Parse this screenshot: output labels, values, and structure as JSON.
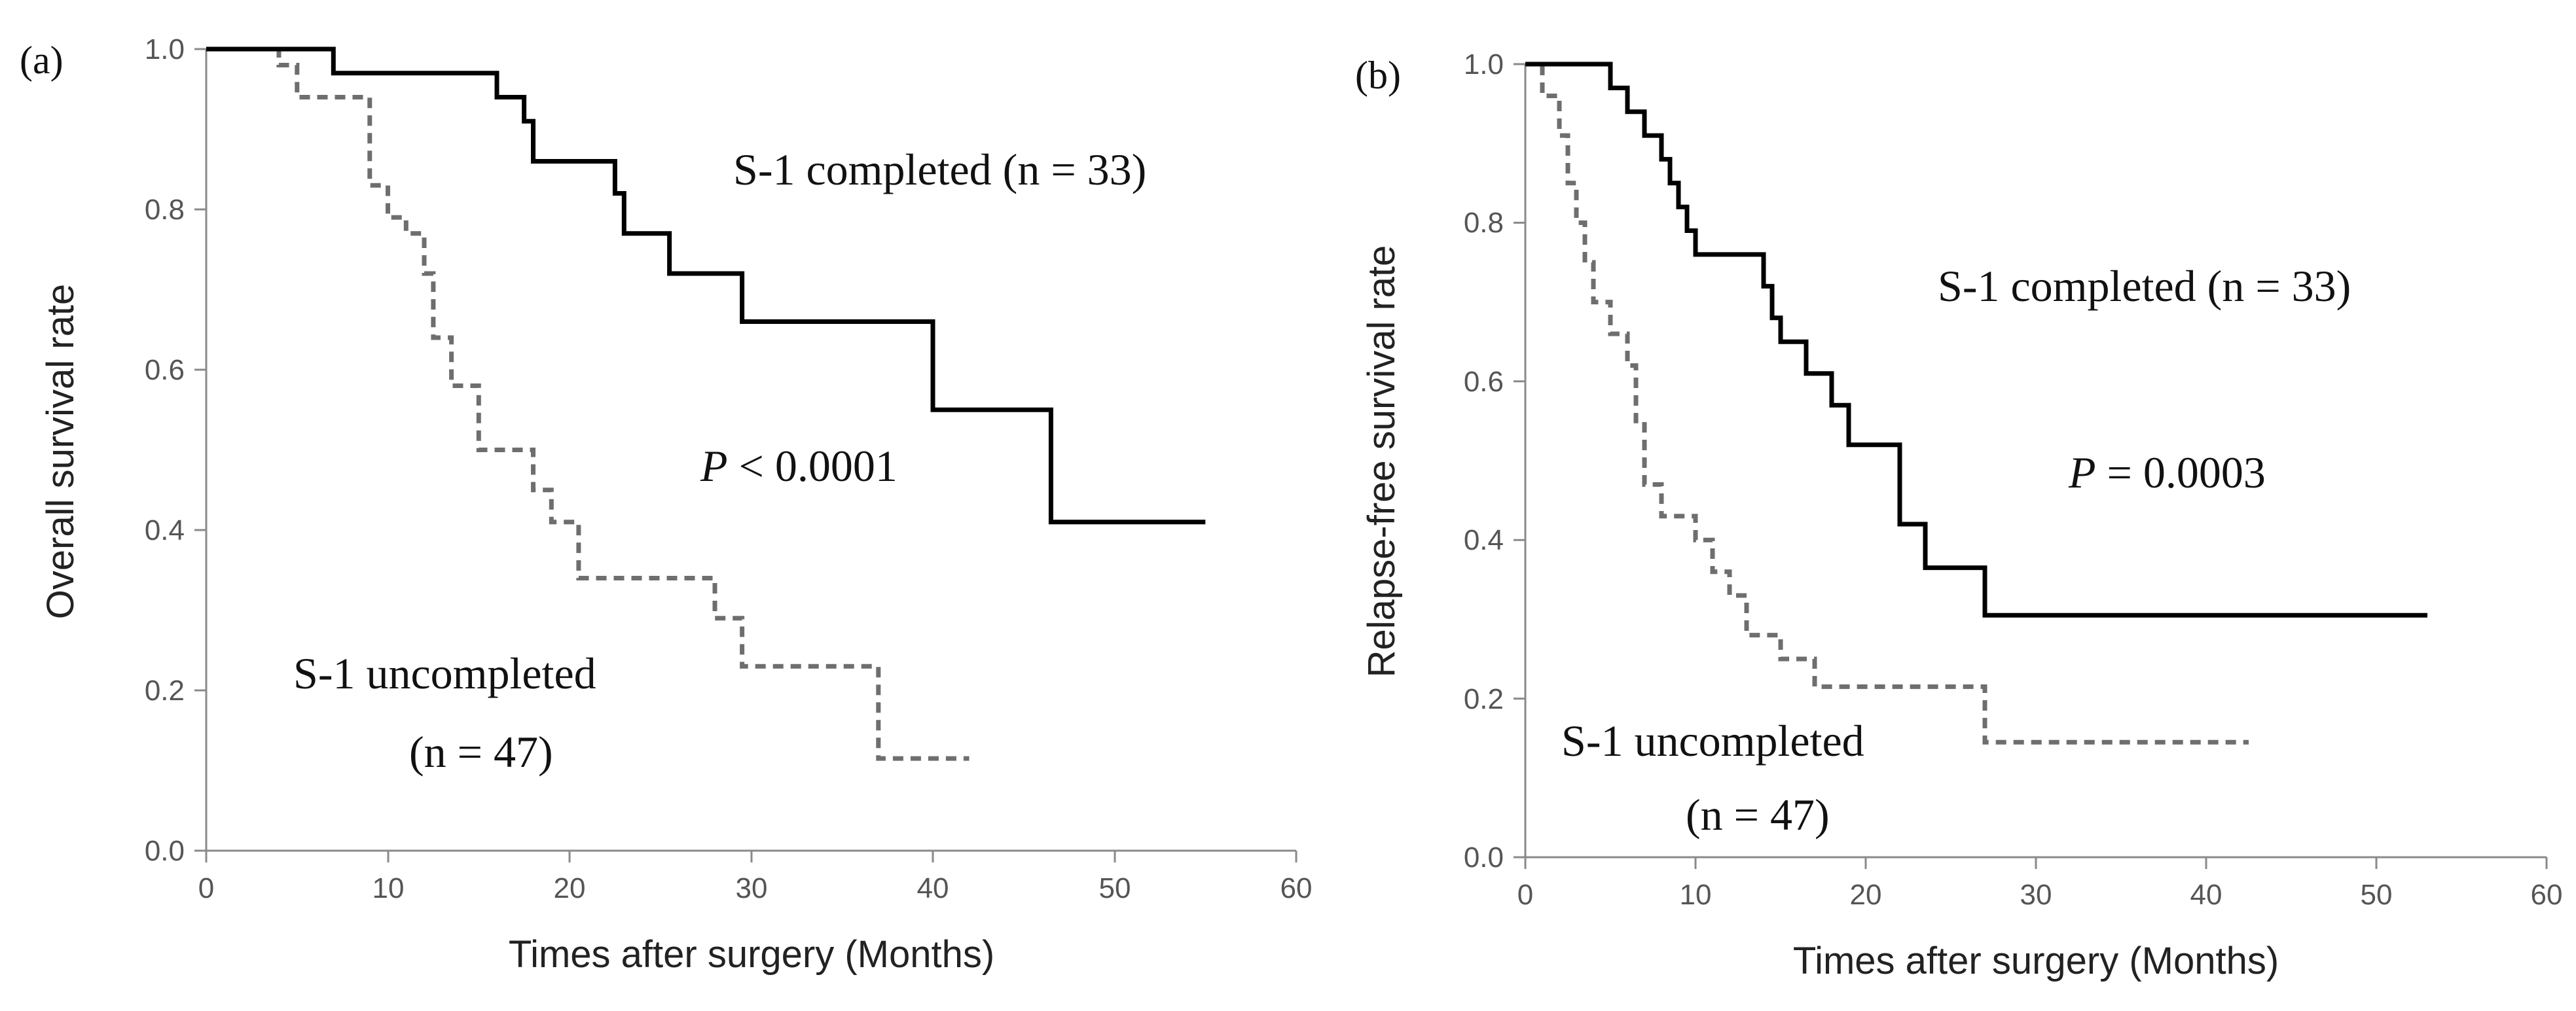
{
  "chart_data": [
    {
      "type": "line",
      "panel_label": "(a)",
      "xlabel": "Times after surgery (Months)",
      "ylabel": "Overall survival rate",
      "xlim": [
        0,
        60
      ],
      "ylim": [
        0,
        1.0
      ],
      "x_ticks": [
        "0",
        "10",
        "20",
        "30",
        "40",
        "50",
        "60"
      ],
      "y_ticks": [
        "0.0",
        "0.2",
        "0.4",
        "0.6",
        "0.8",
        "1.0"
      ],
      "series": [
        {
          "name": "S-1 completed (n = 33)",
          "style": "solid",
          "color": "#000000",
          "points": [
            [
              0,
              1.0
            ],
            [
              7,
              1.0
            ],
            [
              7,
              0.97
            ],
            [
              16,
              0.97
            ],
            [
              16,
              0.94
            ],
            [
              17.5,
              0.94
            ],
            [
              17.5,
              0.91
            ],
            [
              18,
              0.91
            ],
            [
              18,
              0.86
            ],
            [
              22.5,
              0.86
            ],
            [
              22.5,
              0.82
            ],
            [
              23,
              0.82
            ],
            [
              23,
              0.77
            ],
            [
              25.5,
              0.77
            ],
            [
              25.5,
              0.72
            ],
            [
              29.5,
              0.72
            ],
            [
              29.5,
              0.66
            ],
            [
              40,
              0.66
            ],
            [
              40,
              0.55
            ],
            [
              46.5,
              0.55
            ],
            [
              46.5,
              0.41
            ],
            [
              55,
              0.41
            ]
          ]
        },
        {
          "name": "S-1 uncompleted (n = 47)",
          "style": "dashed",
          "color": "#6e6e6e",
          "points": [
            [
              0,
              1.0
            ],
            [
              4,
              1.0
            ],
            [
              4,
              0.98
            ],
            [
              5,
              0.98
            ],
            [
              5,
              0.94
            ],
            [
              9,
              0.94
            ],
            [
              9,
              0.83
            ],
            [
              10,
              0.83
            ],
            [
              10,
              0.79
            ],
            [
              11,
              0.79
            ],
            [
              11,
              0.77
            ],
            [
              12,
              0.77
            ],
            [
              12,
              0.72
            ],
            [
              12.5,
              0.72
            ],
            [
              12.5,
              0.64
            ],
            [
              13.5,
              0.64
            ],
            [
              13.5,
              0.58
            ],
            [
              15,
              0.58
            ],
            [
              15,
              0.5
            ],
            [
              18,
              0.5
            ],
            [
              18,
              0.45
            ],
            [
              19,
              0.45
            ],
            [
              19,
              0.41
            ],
            [
              20.5,
              0.41
            ],
            [
              20.5,
              0.34
            ],
            [
              28,
              0.34
            ],
            [
              28,
              0.29
            ],
            [
              29.5,
              0.29
            ],
            [
              29.5,
              0.23
            ],
            [
              37,
              0.23
            ],
            [
              37,
              0.115
            ],
            [
              42,
              0.115
            ]
          ]
        }
      ],
      "annotations": {
        "completed_label": "S-1 completed (n = 33)",
        "p_symbol": "P",
        "p_text": " < 0.0001",
        "uncompleted_label": "S-1 uncompleted",
        "uncompleted_n": "(n = 47)"
      }
    },
    {
      "type": "line",
      "panel_label": "(b)",
      "xlabel": "Times after surgery (Months)",
      "ylabel": "Relapse-free survival rate",
      "xlim": [
        0,
        60
      ],
      "ylim": [
        0,
        1.0
      ],
      "x_ticks": [
        "0",
        "10",
        "20",
        "30",
        "40",
        "50",
        "60"
      ],
      "y_ticks": [
        "0.0",
        "0.2",
        "0.4",
        "0.6",
        "0.8",
        "1.0"
      ],
      "series": [
        {
          "name": "S-1 completed (n = 33)",
          "style": "solid",
          "color": "#000000",
          "points": [
            [
              0,
              1.0
            ],
            [
              5,
              1.0
            ],
            [
              5,
              0.97
            ],
            [
              6,
              0.97
            ],
            [
              6,
              0.94
            ],
            [
              7,
              0.94
            ],
            [
              7,
              0.91
            ],
            [
              8,
              0.91
            ],
            [
              8,
              0.88
            ],
            [
              8.5,
              0.88
            ],
            [
              8.5,
              0.85
            ],
            [
              9,
              0.85
            ],
            [
              9,
              0.82
            ],
            [
              9.5,
              0.82
            ],
            [
              9.5,
              0.79
            ],
            [
              10,
              0.79
            ],
            [
              10,
              0.76
            ],
            [
              14,
              0.76
            ],
            [
              14,
              0.72
            ],
            [
              14.5,
              0.72
            ],
            [
              14.5,
              0.68
            ],
            [
              15,
              0.68
            ],
            [
              15,
              0.65
            ],
            [
              16.5,
              0.65
            ],
            [
              16.5,
              0.61
            ],
            [
              18,
              0.61
            ],
            [
              18,
              0.57
            ],
            [
              19,
              0.57
            ],
            [
              19,
              0.52
            ],
            [
              22,
              0.52
            ],
            [
              22,
              0.42
            ],
            [
              23.5,
              0.42
            ],
            [
              23.5,
              0.365
            ],
            [
              27,
              0.365
            ],
            [
              27,
              0.305
            ],
            [
              53,
              0.305
            ]
          ]
        },
        {
          "name": "S-1 uncompleted (n = 47)",
          "style": "dashed",
          "color": "#6e6e6e",
          "points": [
            [
              0,
              1.0
            ],
            [
              1,
              1.0
            ],
            [
              1,
              0.96
            ],
            [
              2,
              0.96
            ],
            [
              2,
              0.91
            ],
            [
              2.5,
              0.91
            ],
            [
              2.5,
              0.85
            ],
            [
              3,
              0.85
            ],
            [
              3,
              0.8
            ],
            [
              3.5,
              0.8
            ],
            [
              3.5,
              0.75
            ],
            [
              4,
              0.75
            ],
            [
              4,
              0.7
            ],
            [
              5,
              0.7
            ],
            [
              5,
              0.66
            ],
            [
              6,
              0.66
            ],
            [
              6,
              0.62
            ],
            [
              6.5,
              0.62
            ],
            [
              6.5,
              0.55
            ],
            [
              7,
              0.55
            ],
            [
              7,
              0.47
            ],
            [
              8,
              0.47
            ],
            [
              8,
              0.43
            ],
            [
              10,
              0.43
            ],
            [
              10,
              0.4
            ],
            [
              11,
              0.4
            ],
            [
              11,
              0.36
            ],
            [
              12,
              0.36
            ],
            [
              12,
              0.33
            ],
            [
              13,
              0.33
            ],
            [
              13,
              0.28
            ],
            [
              15,
              0.28
            ],
            [
              15,
              0.25
            ],
            [
              17,
              0.25
            ],
            [
              17,
              0.215
            ],
            [
              27,
              0.215
            ],
            [
              27,
              0.145
            ],
            [
              42.5,
              0.145
            ]
          ]
        }
      ],
      "annotations": {
        "completed_label": "S-1 completed (n = 33)",
        "p_symbol": "P",
        "p_text": " = 0.0003",
        "uncompleted_label": "S-1 uncompleted",
        "uncompleted_n": "(n = 47)"
      }
    }
  ]
}
